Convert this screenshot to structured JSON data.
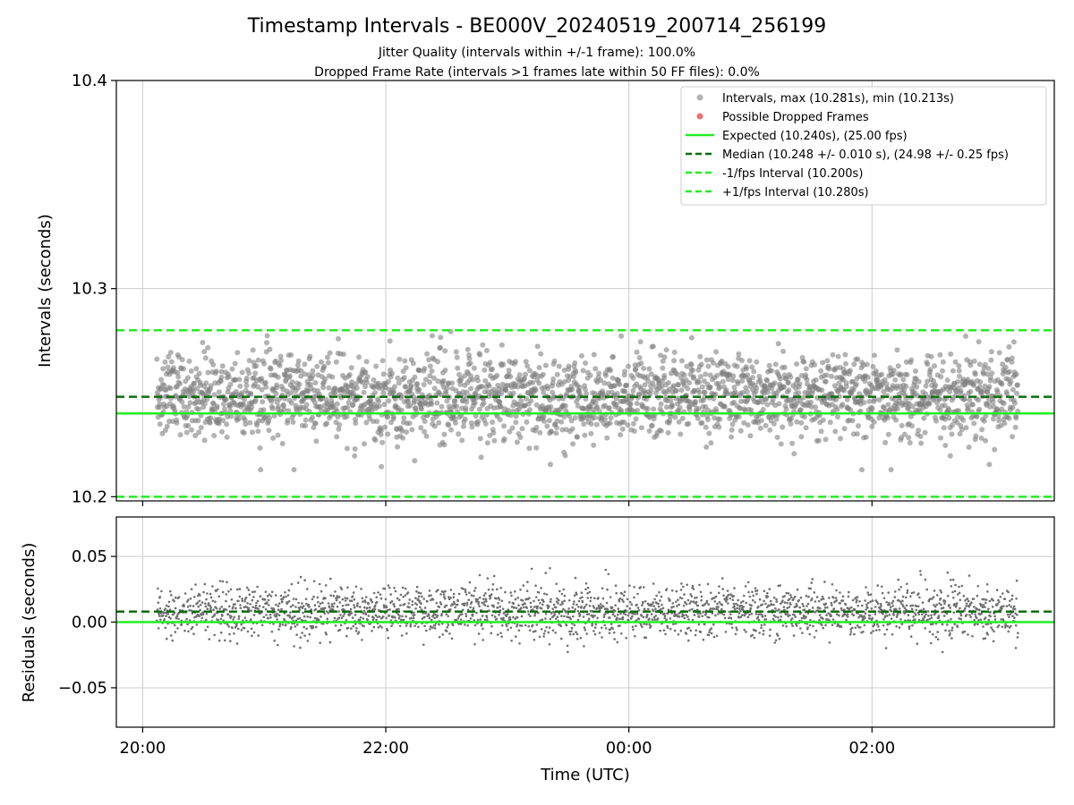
{
  "chart_data": [
    {
      "type": "scatter",
      "title": "Timestamp Intervals - BE000V_20240519_200714_256199",
      "subtitle_lines": [
        "Jitter Quality (intervals within +/-1 frame): 100.0%",
        "Dropped Frame Rate (intervals >1 frames late within 50 FF files): 0.0%"
      ],
      "ylabel": "Intervals (seconds)",
      "xlim": [
        "19:47",
        "03:30"
      ],
      "ylim": [
        10.198,
        10.4
      ],
      "yticks": [
        10.2,
        10.3,
        10.4
      ],
      "ytick_labels": [
        "10.2",
        "10.3",
        "10.4"
      ],
      "xticks": [
        "20:00",
        "22:00",
        "00:00",
        "02:00"
      ],
      "grid": true,
      "legend_position": "top-right",
      "series": [
        {
          "name": "Intervals, max (10.281s), min (10.213s)",
          "kind": "points",
          "color": "#808080",
          "x_range": [
            "20:07",
            "03:12"
          ],
          "y_center": 10.248,
          "y_spread": 0.01,
          "y_max": 10.281,
          "y_min": 10.213,
          "count": 2500
        },
        {
          "name": "Possible Dropped Frames",
          "kind": "points",
          "color": "#f07070",
          "values": []
        },
        {
          "name": "Expected (10.240s), (25.00 fps)",
          "kind": "hline",
          "y": 10.24,
          "color": "#22ee22",
          "style": "solid"
        },
        {
          "name": "Median (10.248 +/- 0.010 s), (24.98 +/- 0.25 fps)",
          "kind": "hline",
          "y": 10.248,
          "color": "#0a6e0a",
          "style": "dashed"
        },
        {
          "name": "-1/fps Interval (10.200s)",
          "kind": "hline",
          "y": 10.2,
          "color": "#22ee22",
          "style": "dashed"
        },
        {
          "name": "+1/fps Interval (10.280s)",
          "kind": "hline",
          "y": 10.28,
          "color": "#22ee22",
          "style": "dashed"
        }
      ]
    },
    {
      "type": "scatter",
      "xlabel": "Time (UTC)",
      "ylabel": "Residuals (seconds)",
      "xlim": [
        "19:47",
        "03:30"
      ],
      "ylim": [
        -0.08,
        0.08
      ],
      "yticks": [
        -0.05,
        0,
        0.05
      ],
      "ytick_labels": [
        "−0.05",
        "0.00",
        "0.05"
      ],
      "xticks": [
        "20:00",
        "22:00",
        "00:00",
        "02:00"
      ],
      "xtick_labels": [
        "20:00",
        "22:00",
        "00:00",
        "02:00"
      ],
      "grid": true,
      "series": [
        {
          "kind": "points",
          "color": "#707070",
          "x_range": [
            "20:07",
            "03:12"
          ],
          "y_center": 0.008,
          "y_spread": 0.01,
          "y_max": 0.041,
          "y_min": -0.027,
          "count": 2500
        },
        {
          "kind": "hline",
          "y": 0.0,
          "color": "#22ee22",
          "style": "solid"
        },
        {
          "kind": "hline",
          "y": 0.008,
          "color": "#0a6e0a",
          "style": "dashed"
        }
      ]
    }
  ]
}
